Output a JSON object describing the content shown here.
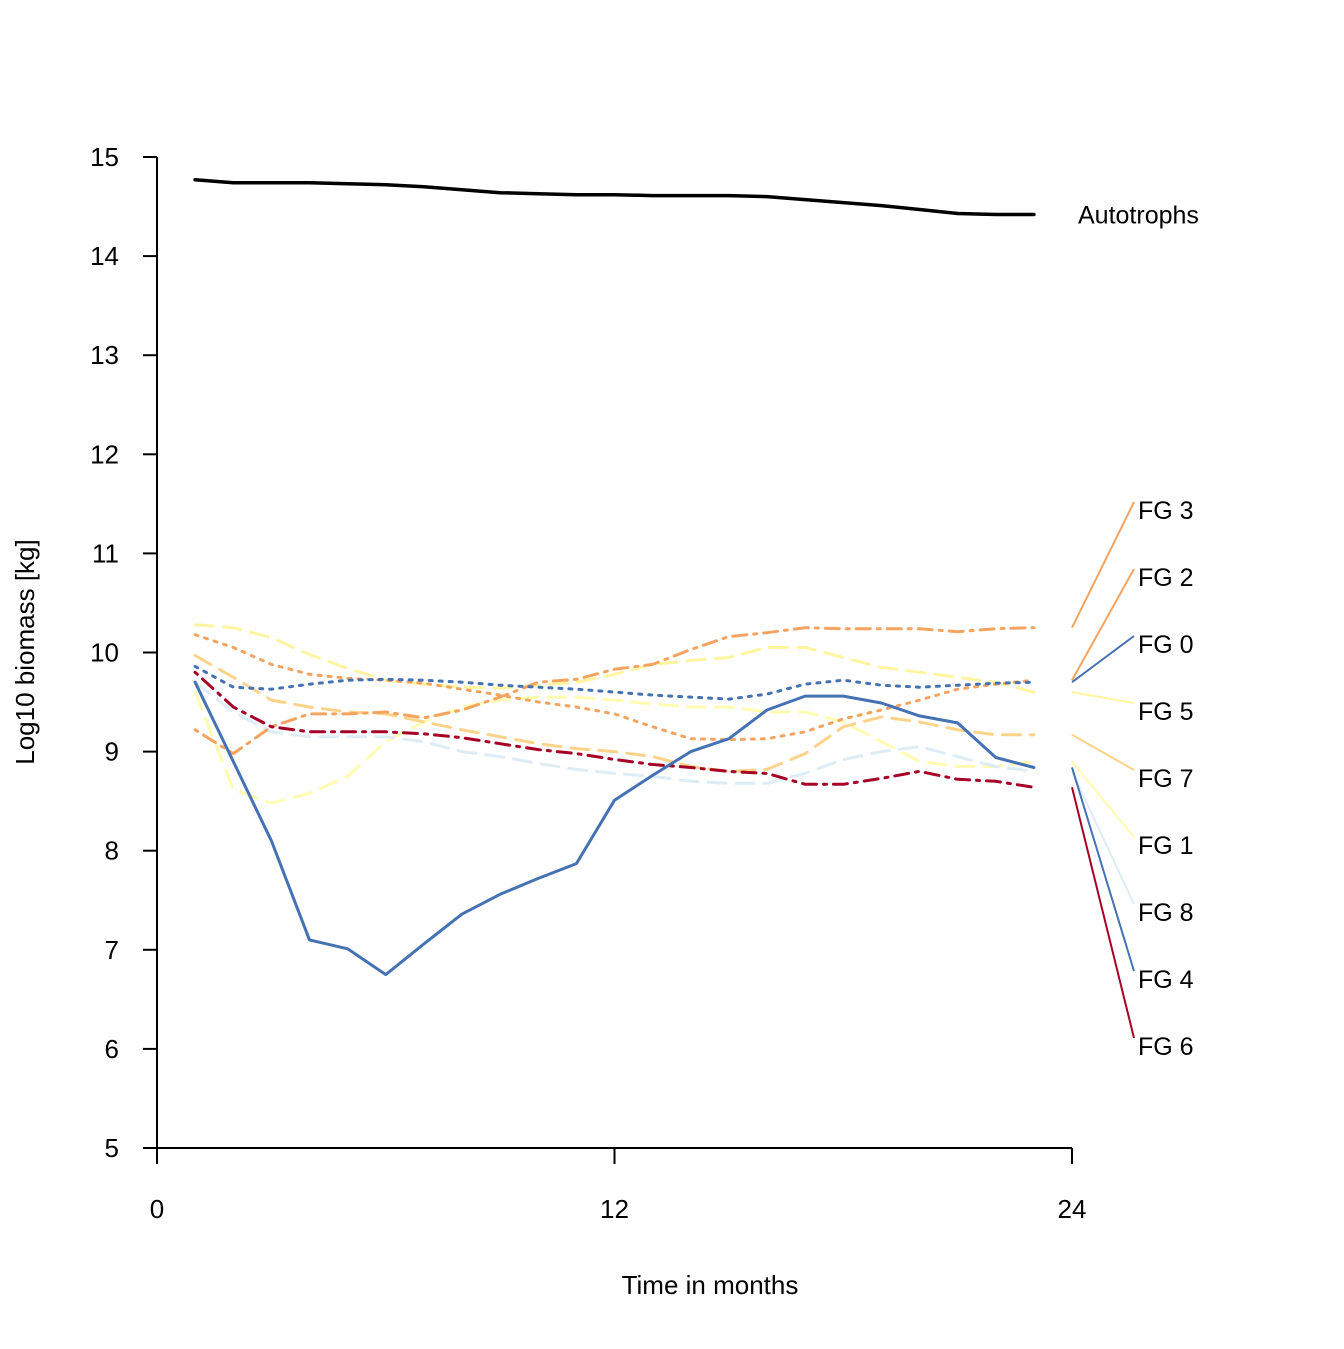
{
  "chart_data": {
    "type": "line",
    "xlabel": "Time in months",
    "ylabel": "Log10 biomass [kg]",
    "xlim": [
      0,
      24
    ],
    "ylim": [
      5,
      15
    ],
    "xticks": [
      0,
      12,
      24
    ],
    "yticks": [
      5,
      6,
      7,
      8,
      9,
      10,
      11,
      12,
      13,
      14,
      15
    ],
    "x": [
      1,
      2,
      3,
      4,
      5,
      6,
      7,
      8,
      9,
      10,
      11,
      12,
      13,
      14,
      15,
      16,
      17,
      18,
      19,
      20,
      21,
      22,
      23
    ],
    "series": [
      {
        "name": "Autotrophs",
        "color": "#000000",
        "dash": "solid",
        "width": 3.5,
        "values": [
          14.77,
          14.74,
          14.74,
          14.74,
          14.73,
          14.72,
          14.7,
          14.67,
          14.64,
          14.63,
          14.62,
          14.62,
          14.61,
          14.61,
          14.61,
          14.6,
          14.57,
          14.54,
          14.51,
          14.47,
          14.43,
          14.42,
          14.42
        ]
      },
      {
        "name": "FG 3",
        "color": "#f4a460",
        "dash": "dashdot",
        "values": [
          9.22,
          8.98,
          9.25,
          9.38,
          9.38,
          9.4,
          9.34,
          9.42,
          9.55,
          9.7,
          9.73,
          9.83,
          9.88,
          10.03,
          10.16,
          10.2,
          10.25,
          10.24,
          10.24,
          10.24,
          10.21,
          10.24,
          10.25
        ]
      },
      {
        "name": "FG 2",
        "color": "#f4a460",
        "dash": "dotted",
        "values": [
          10.18,
          10.05,
          9.88,
          9.78,
          9.74,
          9.72,
          9.69,
          9.63,
          9.57,
          9.5,
          9.45,
          9.38,
          9.25,
          9.13,
          9.12,
          9.13,
          9.2,
          9.33,
          9.42,
          9.52,
          9.63,
          9.68,
          9.72
        ]
      },
      {
        "name": "FG 0",
        "color": "#4572b3",
        "dash": "dotted",
        "values": [
          9.86,
          9.65,
          9.63,
          9.68,
          9.72,
          9.73,
          9.72,
          9.7,
          9.67,
          9.65,
          9.63,
          9.6,
          9.57,
          9.55,
          9.53,
          9.58,
          9.68,
          9.72,
          9.67,
          9.65,
          9.67,
          9.69,
          9.7
        ]
      },
      {
        "name": "FG 5",
        "color": "#fff5a0",
        "dash": "longdash",
        "values": [
          10.28,
          10.25,
          10.15,
          9.98,
          9.84,
          9.72,
          9.68,
          9.65,
          9.64,
          9.67,
          9.7,
          9.78,
          9.88,
          9.92,
          9.95,
          10.05,
          10.05,
          9.95,
          9.85,
          9.8,
          9.75,
          9.7,
          9.6
        ]
      },
      {
        "name": "FG 7",
        "color": "#fdd38a",
        "dash": "longdash",
        "values": [
          9.97,
          9.75,
          9.52,
          9.45,
          9.4,
          9.38,
          9.3,
          9.22,
          9.15,
          9.08,
          9.03,
          9.0,
          8.95,
          8.85,
          8.8,
          8.82,
          8.98,
          9.25,
          9.35,
          9.3,
          9.22,
          9.17,
          9.17
        ]
      },
      {
        "name": "FG 1",
        "color": "#fffbb0",
        "dash": "longdash",
        "values": [
          9.6,
          8.62,
          8.48,
          8.58,
          8.75,
          9.1,
          9.3,
          9.45,
          9.52,
          9.55,
          9.55,
          9.52,
          9.48,
          9.45,
          9.45,
          9.4,
          9.4,
          9.3,
          9.1,
          8.9,
          8.85,
          8.85,
          8.9
        ]
      },
      {
        "name": "FG 8",
        "color": "#ddecf5",
        "dash": "longdash",
        "values": [
          9.7,
          9.4,
          9.2,
          9.15,
          9.15,
          9.15,
          9.1,
          9.0,
          8.95,
          8.88,
          8.82,
          8.78,
          8.75,
          8.7,
          8.68,
          8.68,
          8.78,
          8.92,
          9.0,
          9.05,
          8.95,
          8.85,
          8.8
        ]
      },
      {
        "name": "FG 4",
        "color": "#4572b3",
        "dash": "solid",
        "width": 3,
        "values": [
          9.7,
          8.9,
          8.1,
          7.1,
          7.01,
          6.75,
          7.06,
          7.36,
          7.56,
          7.72,
          7.87,
          8.51,
          8.76,
          9.0,
          9.13,
          9.42,
          9.56,
          9.56,
          9.49,
          9.36,
          9.29,
          8.94,
          8.84
        ]
      },
      {
        "name": "FG 6",
        "color": "#a50026",
        "dash": "dashdot",
        "values": [
          9.8,
          9.45,
          9.25,
          9.2,
          9.2,
          9.2,
          9.18,
          9.14,
          9.08,
          9.02,
          8.98,
          8.92,
          8.87,
          8.84,
          8.8,
          8.78,
          8.67,
          8.67,
          8.73,
          8.8,
          8.72,
          8.7,
          8.64
        ]
      }
    ]
  }
}
